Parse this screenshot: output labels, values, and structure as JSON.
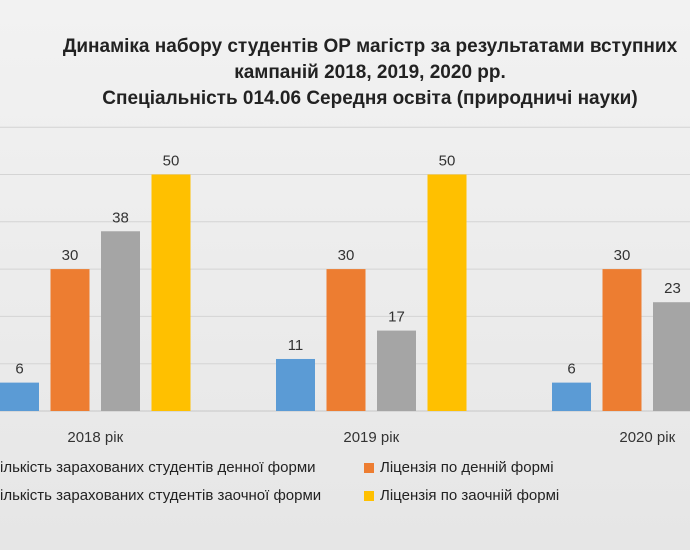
{
  "chart_data": {
    "type": "bar",
    "title": "Динаміка набору студентів ОР магістр за результатами вступних кампаній 2018, 2019, 2020 рр.",
    "title_lines": [
      "Динаміка набору студентів ОР магістр за результатами вступних",
      "кампаній 2018, 2019, 2020 рр.",
      "Спеціальність 014.06 Середня освіта (природничі науки)"
    ],
    "categories": [
      "2018 рік",
      "2019 рік",
      "2020 рік"
    ],
    "series": [
      {
        "name": "Кількість зарахованих студентів денної форми",
        "legend_visible": "ількість зарахованих студентів денної форми",
        "color": "#5b9bd5",
        "values": [
          6,
          11,
          6
        ]
      },
      {
        "name": "Ліцензія по денній формі",
        "legend_visible": "Ліцензія по денній формі",
        "color": "#ed7d31",
        "values": [
          30,
          30,
          30
        ]
      },
      {
        "name": "Кількість зарахованих студентів заочної форми",
        "legend_visible": "ількість зарахованих студентів заочної форми",
        "color": "#a5a5a5",
        "values": [
          38,
          17,
          23
        ]
      },
      {
        "name": "Ліцензія по заочній формі",
        "legend_visible": "Ліцензія по заочній формі",
        "color": "#ffc000",
        "values": [
          50,
          50,
          null
        ]
      }
    ],
    "ylim": [
      0,
      60
    ],
    "grid": true,
    "legend_position": "bottom",
    "xlabel": "",
    "ylabel": ""
  }
}
